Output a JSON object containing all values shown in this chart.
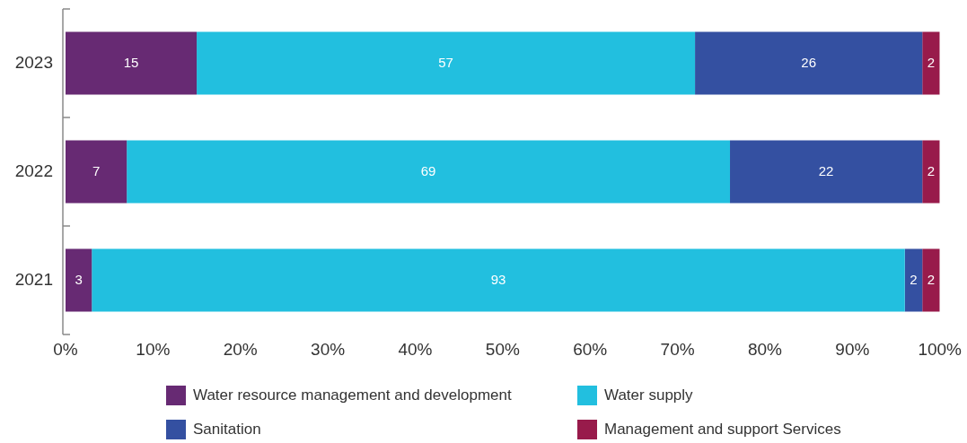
{
  "chart_data": {
    "type": "bar",
    "orientation": "horizontal",
    "stacked": true,
    "categories": [
      "2023",
      "2022",
      "2021"
    ],
    "series": [
      {
        "name": "Water resource management and development",
        "color": "#672a73",
        "values": [
          15,
          7,
          3
        ]
      },
      {
        "name": "Water supply",
        "color": "#22bfdf",
        "values": [
          57,
          69,
          93
        ]
      },
      {
        "name": "Sanitation",
        "color": "#3450a1",
        "values": [
          26,
          22,
          2
        ]
      },
      {
        "name": "Management and support Services",
        "color": "#981b4b",
        "values": [
          2,
          2,
          2
        ]
      }
    ],
    "xlim": [
      0,
      100
    ],
    "xticks": [
      {
        "value": 0,
        "label": "0%"
      },
      {
        "value": 10,
        "label": "10%"
      },
      {
        "value": 20,
        "label": "20%"
      },
      {
        "value": 30,
        "label": "30%"
      },
      {
        "value": 40,
        "label": "40%"
      },
      {
        "value": 50,
        "label": "50%"
      },
      {
        "value": 60,
        "label": "60%"
      },
      {
        "value": 70,
        "label": "70%"
      },
      {
        "value": 80,
        "label": "80%"
      },
      {
        "value": 90,
        "label": "90%"
      },
      {
        "value": 100,
        "label": "100%"
      }
    ],
    "data_labels": true,
    "legend": "bottom",
    "grid": false
  }
}
